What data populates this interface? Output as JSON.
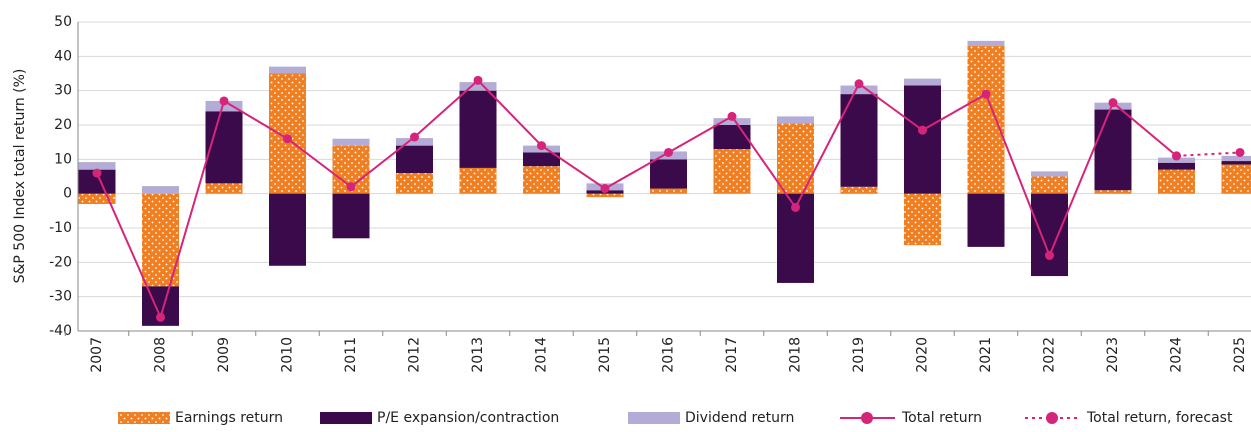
{
  "chart_data": {
    "type": "stacked-bar-line",
    "y_label": "S&P 500 Index total return (%)",
    "categories": [
      "2007",
      "2008",
      "2009",
      "2010",
      "2011",
      "2012",
      "2013",
      "2014",
      "2015",
      "2016",
      "2017",
      "2018",
      "2019",
      "2020",
      "2021",
      "2022",
      "2023",
      "2024",
      "2025"
    ],
    "ylim": [
      -40,
      50
    ],
    "yticks": [
      -40,
      -30,
      -20,
      -10,
      0,
      10,
      20,
      30,
      40,
      50
    ],
    "grid": true,
    "series": [
      {
        "name": "Earnings return",
        "kind": "bar",
        "color": "#f07f22",
        "pattern": "dots",
        "values": [
          -3,
          -27,
          3,
          35,
          14,
          6,
          7.5,
          8,
          -1,
          1.5,
          13,
          20.5,
          2,
          -15,
          43,
          5,
          1,
          7,
          8.5
        ]
      },
      {
        "name": "P/E expansion/contraction",
        "kind": "bar",
        "color": "#3b0a4a",
        "values": [
          7,
          -11.5,
          21,
          -21,
          -13,
          8,
          22.5,
          4,
          1,
          8.5,
          7,
          -26,
          27,
          31.5,
          -15.5,
          -24,
          23.5,
          2,
          1
        ]
      },
      {
        "name": "Dividend return",
        "kind": "bar",
        "color": "#b4acd6",
        "values": [
          2.2,
          2.2,
          3,
          2,
          2,
          2.2,
          2.5,
          2,
          2,
          2.3,
          2,
          2,
          2.5,
          2,
          1.5,
          1.5,
          2,
          1.5,
          1.5
        ]
      },
      {
        "name": "Total return",
        "kind": "line",
        "color": "#d6247a",
        "values": [
          6,
          -36,
          27,
          16,
          2,
          16.5,
          33,
          14,
          1.5,
          12,
          22.5,
          -4,
          32,
          18.5,
          29,
          -18,
          26.5,
          11,
          null
        ]
      },
      {
        "name": "Total return, forecast",
        "kind": "line",
        "dashed": true,
        "color": "#d6247a",
        "values": [
          null,
          null,
          null,
          null,
          null,
          null,
          null,
          null,
          null,
          null,
          null,
          null,
          null,
          null,
          null,
          null,
          null,
          11,
          12
        ]
      }
    ]
  }
}
